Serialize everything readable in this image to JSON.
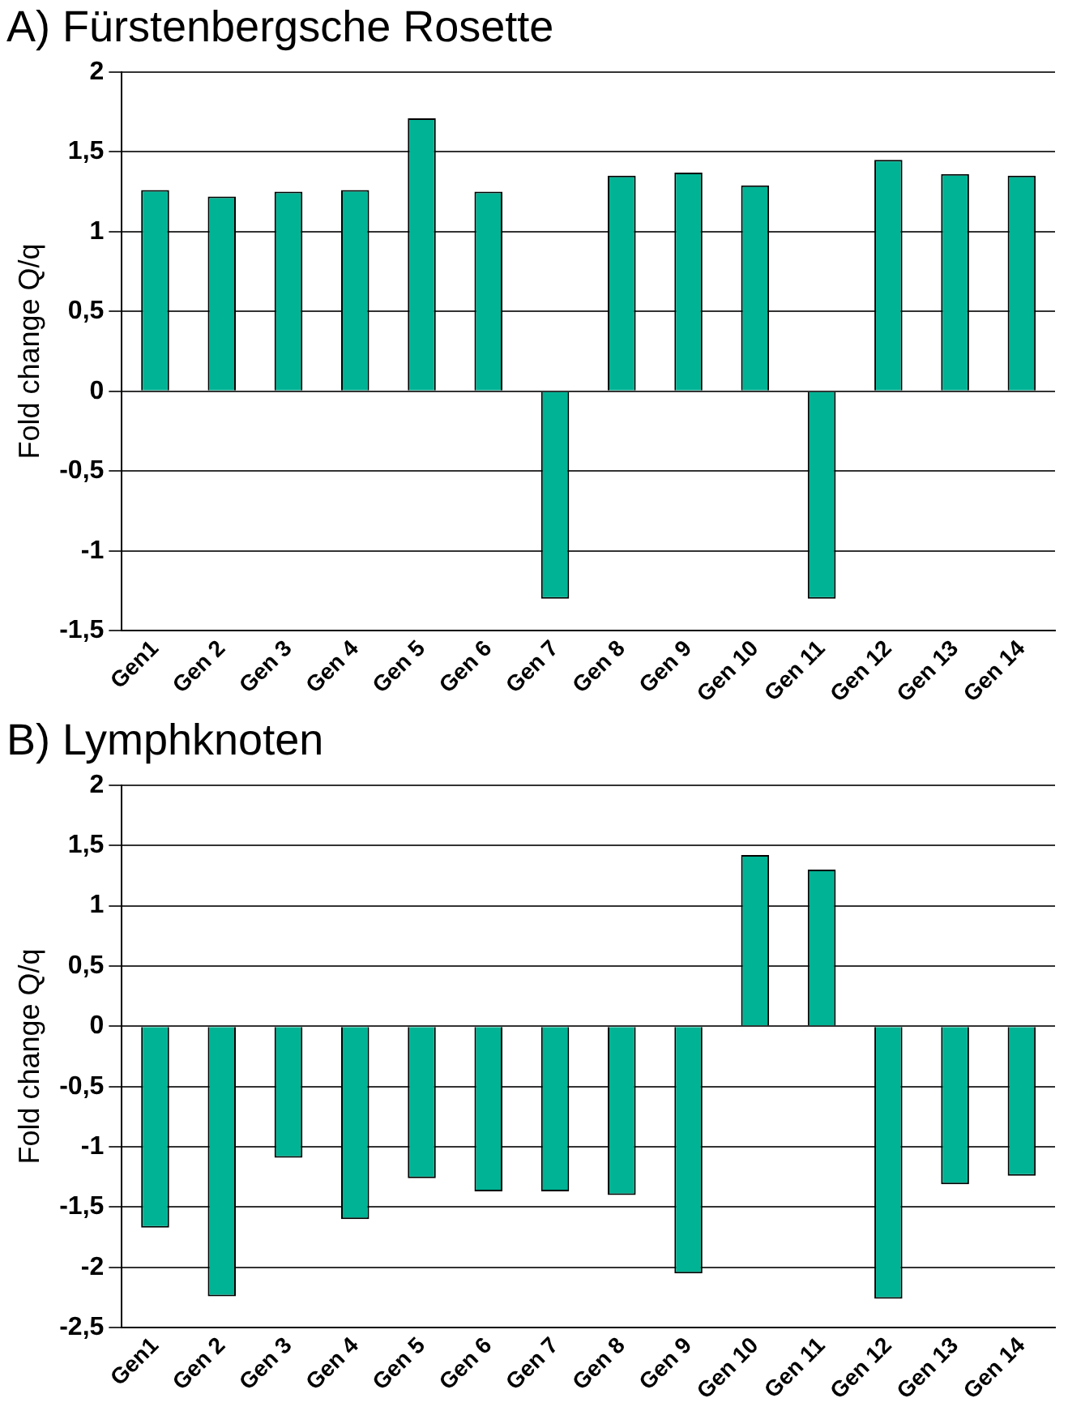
{
  "chart_data": [
    {
      "type": "bar",
      "title": "A) Fürstenbergsche Rosette",
      "ylabel": "Fold change Q/q",
      "categories": [
        "Gen1",
        "Gen 2",
        "Gen 3",
        "Gen 4",
        "Gen 5",
        "Gen 6",
        "Gen 7",
        "Gen 8",
        "Gen 9",
        "Gen 10",
        "Gen 11",
        "Gen 12",
        "Gen 13",
        "Gen 14"
      ],
      "values": [
        1.26,
        1.22,
        1.25,
        1.26,
        1.71,
        1.25,
        -1.3,
        1.35,
        1.37,
        1.29,
        -1.3,
        1.45,
        1.36,
        1.35
      ],
      "color": "#00b394",
      "ylim": [
        -1.5,
        2
      ],
      "yticks": [
        {
          "value": -1.5,
          "label": "-1,5"
        },
        -1,
        {
          "value": -0.5,
          "label": "-0,5"
        },
        0,
        {
          "value": 0.5,
          "label": "0,5"
        },
        1,
        {
          "value": 1.5,
          "label": "1,5"
        },
        2
      ],
      "grid": "y",
      "legend": false
    },
    {
      "type": "bar",
      "title": "B) Lymphknoten",
      "ylabel": "Fold change Q/q",
      "categories": [
        "Gen1",
        "Gen 2",
        "Gen 3",
        "Gen 4",
        "Gen 5",
        "Gen 6",
        "Gen 7",
        "Gen 8",
        "Gen 9",
        "Gen 10",
        "Gen 11",
        "Gen 12",
        "Gen 13",
        "Gen 14"
      ],
      "values": [
        -1.67,
        -2.24,
        -1.09,
        -1.6,
        -1.26,
        -1.37,
        -1.37,
        -1.4,
        -2.05,
        1.42,
        1.3,
        -2.26,
        -1.31,
        -1.24
      ],
      "color": "#00b394",
      "ylim": [
        -2.5,
        2
      ],
      "yticks": [
        {
          "value": -2.5,
          "label": "-2,5"
        },
        -2,
        {
          "value": -1.5,
          "label": "-1,5"
        },
        -1,
        {
          "value": -0.5,
          "label": "-0,5"
        },
        0,
        {
          "value": 0.5,
          "label": "0,5"
        },
        1,
        {
          "value": 1.5,
          "label": "1,5"
        },
        2
      ],
      "grid": "y",
      "legend": false
    }
  ]
}
